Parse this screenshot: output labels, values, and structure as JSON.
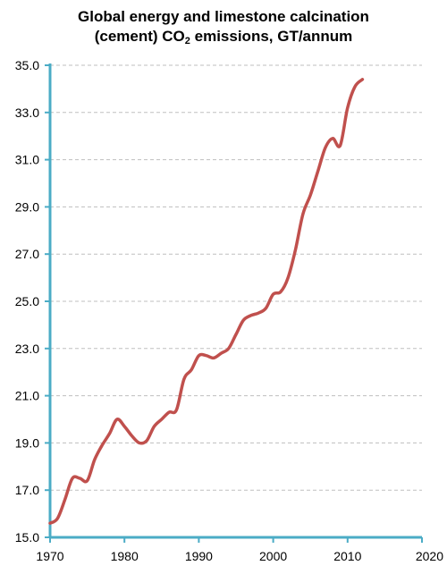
{
  "chart_data": {
    "type": "line",
    "title": {
      "line1": "Global energy and limestone calcination",
      "line2_before": "(cement) CO",
      "line2_sub": "2",
      "line2_after": " emissions, GT/annum"
    },
    "xlabel": "",
    "ylabel": "",
    "xlim": [
      1970,
      2020
    ],
    "ylim": [
      15.0,
      35.0
    ],
    "x_ticks": [
      "1970",
      "1980",
      "1990",
      "2000",
      "2010",
      "2020"
    ],
    "y_ticks": [
      "15.0",
      "17.0",
      "19.0",
      "21.0",
      "23.0",
      "25.0",
      "27.0",
      "29.0",
      "31.0",
      "33.0",
      "35.0"
    ],
    "grid": "horizontal dashed",
    "legend": "none",
    "colors": {
      "line": "#c0504d",
      "axis": "#4bacc6",
      "grid": "#bfbfbf"
    },
    "series": [
      {
        "x": [
          1970,
          1971,
          1972,
          1973,
          1974,
          1975,
          1976,
          1977,
          1978,
          1979,
          1980,
          1981,
          1982,
          1983,
          1984,
          1985,
          1986,
          1987,
          1988,
          1989,
          1990,
          1991,
          1992,
          1993,
          1994,
          1995,
          1996,
          1997,
          1998,
          1999,
          2000,
          2001,
          2002,
          2003,
          2004,
          2005,
          2006,
          2007,
          2008,
          2009,
          2010,
          2011,
          2012
        ],
        "values": [
          15.6,
          15.8,
          16.6,
          17.5,
          17.5,
          17.4,
          18.3,
          18.9,
          19.4,
          20.0,
          19.7,
          19.3,
          19.0,
          19.1,
          19.7,
          20.0,
          20.3,
          20.4,
          21.7,
          22.1,
          22.7,
          22.7,
          22.6,
          22.8,
          23.0,
          23.6,
          24.2,
          24.4,
          24.5,
          24.7,
          25.3,
          25.4,
          26.0,
          27.2,
          28.7,
          29.5,
          30.5,
          31.5,
          31.9,
          31.6,
          33.2,
          34.1,
          34.4
        ]
      }
    ]
  }
}
